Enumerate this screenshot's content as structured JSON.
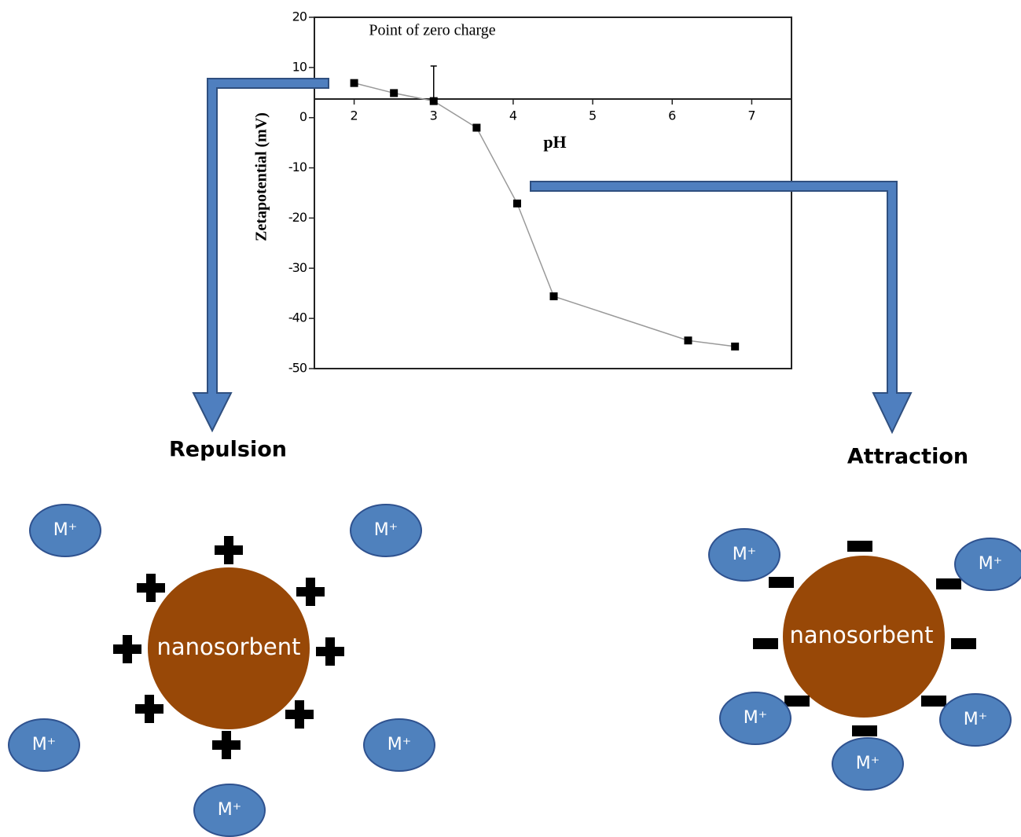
{
  "chart_data": {
    "type": "line",
    "annotation": "Point of zero charge",
    "x_label": "pH",
    "y_label": "Zetapotential (mV)",
    "x": [
      2,
      2.5,
      3,
      3.54,
      4.05,
      4.51,
      6.2,
      6.79
    ],
    "series": [
      {
        "color": "#000000",
        "values": [
          6.9,
          4.9,
          3.3,
          -2.0,
          -17.1,
          -35.6,
          -44.4,
          -45.6
        ],
        "errors": [
          null,
          null,
          7,
          null,
          null,
          null,
          null,
          null
        ]
      }
    ],
    "xlim": [
      1.5,
      7.5
    ],
    "xticks": [
      2,
      3,
      4,
      5,
      6,
      7
    ],
    "ylim": [
      -50,
      20
    ],
    "yticks": [
      20,
      10,
      0,
      -10,
      -20,
      -30,
      -40,
      -50
    ]
  },
  "diagram": {
    "left_label": "Repulsion",
    "right_label": "Attraction",
    "left_particle": "nanosorbent",
    "right_particle": "nanosorbent",
    "left_ions": [
      "M⁺",
      "M⁺",
      "M⁺",
      "M⁺",
      "M⁺"
    ],
    "right_ions": [
      "M⁺",
      "M⁺",
      "M⁺",
      "M⁺",
      "M⁺"
    ]
  }
}
